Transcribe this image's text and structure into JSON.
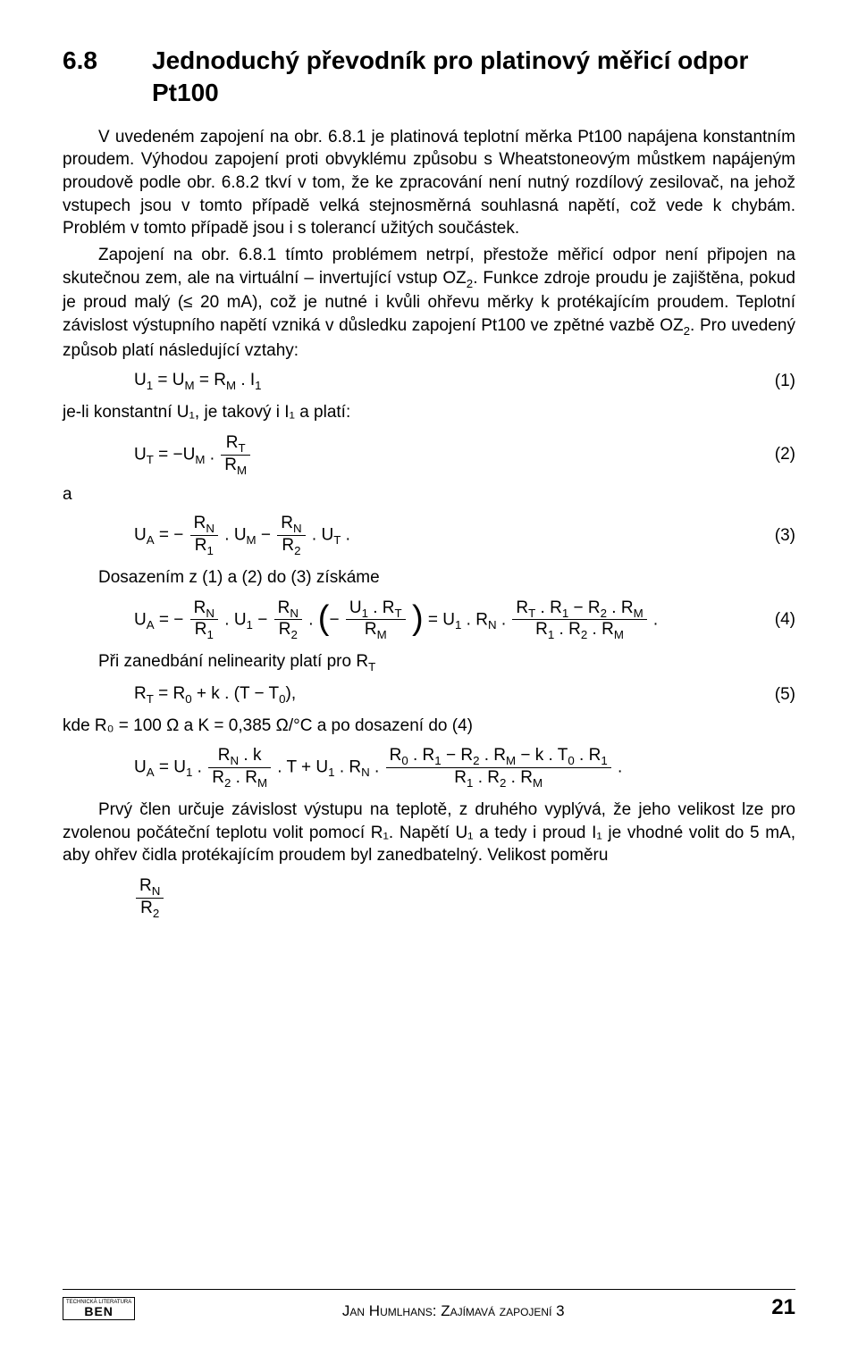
{
  "heading": {
    "number": "6.8",
    "title": "Jednoduchý převodník pro platinový měřicí odpor Pt100"
  },
  "para1": "V uvedeném zapojení na obr. 6.8.1 je platinová teplotní měrka Pt100 napájena konstantním proudem. Výhodou zapojení proti obvyklému způsobu s Wheatstoneovým můstkem napájeným proudově podle obr. 6.8.2 tkví v tom, že ke zpracování není nutný rozdílový zesilovač, na jehož vstupech jsou v tomto případě velká stejnosměrná souhlasná napětí, což vede k chybám. Problém v tomto případě jsou i s tolerancí užitých součástek.",
  "para2_a": "Zapojení na obr. 6.8.1 tímto problémem netrpí, přestože měřicí odpor není připojen na skutečnou zem, ale na virtuální – invertující vstup OZ",
  "para2_b": ". Funkce zdroje proudu je zajištěna, pokud je proud malý (≤ 20 mA), což je nutné i kvůli ohřevu měrky k protékajícím proudem. Teplotní závislost výstupního napětí vzniká v důsledku zapojení Pt100 ve zpětné vazbě OZ",
  "para2_c": ". Pro uvedený způsob platí následující vztahy:",
  "eq1_text": "U₁ = Uᴍ = Rᴍ . I₁",
  "eq1_num": "(1)",
  "line_after_eq1": "je-li konstantní U₁, je takový i I₁ a platí:",
  "eq2_lhs": "U",
  "eq2_num": "(2)",
  "connector_a": "a",
  "eq3_num": "(3)",
  "line_after_eq3": "Dosazením z (1) a (2) do (3) získáme",
  "eq4_num": "(4)",
  "line_after_eq4_a": "Při zanedbání nelinearity platí pro R",
  "eq5_text": "Rᴛ = R₀ + k . (T – T₀),",
  "eq5_num": "(5)",
  "line_after_eq5": "kde R₀ = 100 Ω a K = 0,385 Ω/°C a po dosazení do (4)",
  "para_last": "Prvý člen určuje závislost výstupu na teplotě, z druhého vyplývá, že jeho velikost lze pro zvolenou počáteční teplotu volit pomocí R₁. Napětí U₁ a tedy i proud I₁ je vhodné volit do 5 mA, aby ohřev čidla protékajícím proudem byl zanedbatelný. Velikost poměru",
  "footer": {
    "logo_top": "TECHNICKÁ LITERATURA",
    "logo_bottom": "BEN",
    "center": "Jan Humlhans: Zajímavá zapojení 3",
    "page": "21"
  },
  "colors": {
    "text": "#000000",
    "bg": "#ffffff"
  },
  "typography": {
    "heading_fontsize": 28,
    "body_fontsize": 19,
    "footer_fontsize": 15,
    "pagenum_fontsize": 24
  }
}
